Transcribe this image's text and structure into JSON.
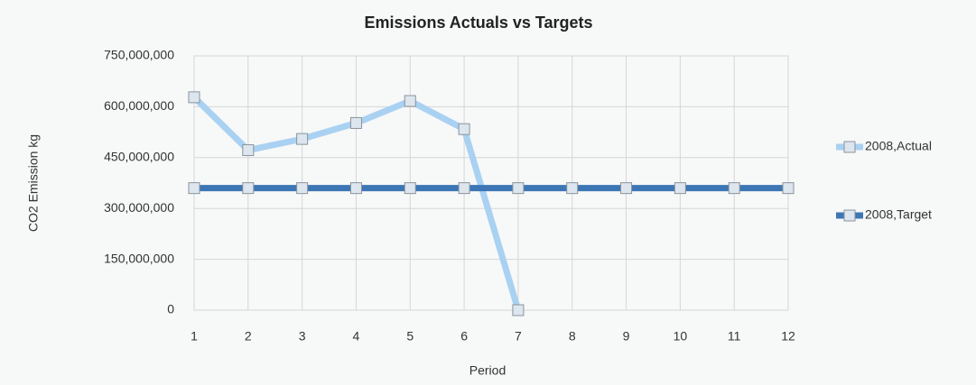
{
  "chart_data": {
    "type": "line",
    "title": "Emissions Actuals vs Targets",
    "x_label": "Period",
    "y_label": "CO2 Emission kg",
    "categories": [
      "1",
      "2",
      "3",
      "4",
      "5",
      "6",
      "7",
      "8",
      "9",
      "10",
      "11",
      "12"
    ],
    "series": [
      {
        "name": "2008,Actual",
        "color": "#a9d1f2",
        "values": [
          628000000,
          472000000,
          505000000,
          552000000,
          617000000,
          534000000,
          0,
          null,
          null,
          null,
          null,
          null
        ]
      },
      {
        "name": "2008,Target",
        "color": "#3d76b4",
        "values": [
          360000000,
          360000000,
          360000000,
          360000000,
          360000000,
          360000000,
          360000000,
          360000000,
          360000000,
          360000000,
          360000000,
          360000000
        ]
      }
    ],
    "ylim": [
      0,
      750000000
    ],
    "yticks": [
      {
        "value": 0,
        "label": "0"
      },
      {
        "value": 150000000,
        "label": "150,000,000"
      },
      {
        "value": 300000000,
        "label": "300,000,000"
      },
      {
        "value": 450000000,
        "label": "450,000,000"
      },
      {
        "value": 600000000,
        "label": "600,000,000"
      },
      {
        "value": 750000000,
        "label": "750,000,000"
      }
    ],
    "grid": true,
    "legend": "right"
  }
}
